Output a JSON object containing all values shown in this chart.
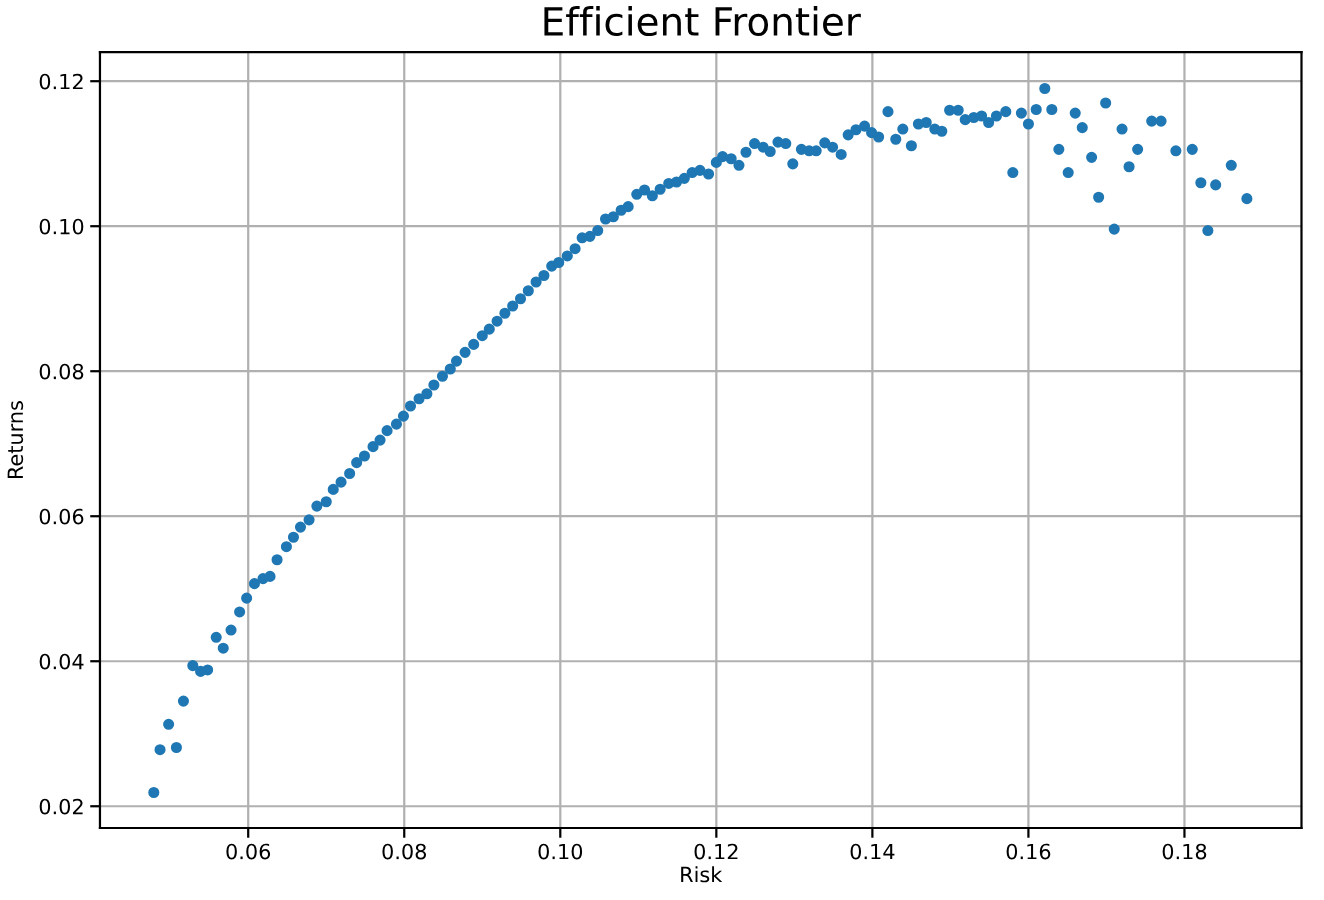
{
  "chart_data": {
    "type": "scatter",
    "title": "Efficient Frontier",
    "xlabel": "Risk",
    "ylabel": "Returns",
    "x": [
      0.0479,
      0.0487,
      0.0498,
      0.0508,
      0.0517,
      0.0529,
      0.0539,
      0.0548,
      0.0559,
      0.0568,
      0.0578,
      0.0589,
      0.0598,
      0.0608,
      0.0619,
      0.0628,
      0.0637,
      0.0649,
      0.0658,
      0.0667,
      0.0678,
      0.0688,
      0.07,
      0.0709,
      0.0719,
      0.073,
      0.0739,
      0.0749,
      0.076,
      0.0769,
      0.0778,
      0.079,
      0.0799,
      0.0808,
      0.0819,
      0.0829,
      0.0838,
      0.0849,
      0.0859,
      0.0867,
      0.0878,
      0.0889,
      0.09,
      0.0909,
      0.0919,
      0.0929,
      0.0939,
      0.0949,
      0.0959,
      0.0969,
      0.0979,
      0.0989,
      0.0998,
      0.1009,
      0.1019,
      0.1028,
      0.1038,
      0.1048,
      0.1058,
      0.1068,
      0.1078,
      0.1087,
      0.1098,
      0.1108,
      0.1118,
      0.1128,
      0.1139,
      0.1149,
      0.1159,
      0.1169,
      0.1179,
      0.119,
      0.12,
      0.1208,
      0.1219,
      0.1229,
      0.1238,
      0.1249,
      0.126,
      0.1269,
      0.1279,
      0.1289,
      0.1298,
      0.1309,
      0.1319,
      0.1328,
      0.1339,
      0.1349,
      0.136,
      0.1369,
      0.1379,
      0.139,
      0.1399,
      0.1408,
      0.142,
      0.143,
      0.1439,
      0.145,
      0.1459,
      0.1469,
      0.148,
      0.1489,
      0.1499,
      0.151,
      0.1519,
      0.153,
      0.154,
      0.1549,
      0.1559,
      0.1571,
      0.158,
      0.1591,
      0.16,
      0.161,
      0.1621,
      0.163,
      0.1639,
      0.1651,
      0.166,
      0.1669,
      0.1681,
      0.169,
      0.1699,
      0.171,
      0.172,
      0.1729,
      0.174,
      0.1758,
      0.177,
      0.1789,
      0.181,
      0.1821,
      0.183,
      0.184,
      0.186,
      0.188
    ],
    "series": [
      {
        "color": "#1f77b4",
        "values": [
          0.0219,
          0.0278,
          0.0313,
          0.0281,
          0.0345,
          0.0394,
          0.0386,
          0.0388,
          0.0433,
          0.0418,
          0.0443,
          0.0468,
          0.0487,
          0.0507,
          0.0514,
          0.0517,
          0.054,
          0.0558,
          0.0571,
          0.0585,
          0.0595,
          0.0614,
          0.062,
          0.0637,
          0.0647,
          0.0659,
          0.0674,
          0.0683,
          0.0696,
          0.0705,
          0.0718,
          0.0727,
          0.0738,
          0.0752,
          0.0762,
          0.0769,
          0.0781,
          0.0793,
          0.0803,
          0.0814,
          0.0826,
          0.0837,
          0.0849,
          0.0858,
          0.0869,
          0.088,
          0.089,
          0.09,
          0.0911,
          0.0923,
          0.0932,
          0.0945,
          0.095,
          0.0959,
          0.0969,
          0.0984,
          0.0986,
          0.0994,
          0.101,
          0.1013,
          0.1022,
          0.1027,
          0.1044,
          0.105,
          0.1042,
          0.1051,
          0.1059,
          0.1061,
          0.1066,
          0.1074,
          0.1077,
          0.1072,
          0.1088,
          0.1096,
          0.1093,
          0.1084,
          0.1102,
          0.1114,
          0.1109,
          0.1103,
          0.1116,
          0.1114,
          0.1086,
          0.1106,
          0.1104,
          0.1104,
          0.1115,
          0.1109,
          0.1099,
          0.1126,
          0.1133,
          0.1138,
          0.1129,
          0.1123,
          0.1158,
          0.112,
          0.1134,
          0.1111,
          0.1141,
          0.1143,
          0.1134,
          0.1131,
          0.116,
          0.116,
          0.1147,
          0.115,
          0.1152,
          0.1143,
          0.1152,
          0.1158,
          0.1074,
          0.1156,
          0.1141,
          0.1161,
          0.119,
          0.1161,
          0.1106,
          0.1074,
          0.1156,
          0.1136,
          0.1095,
          0.104,
          0.117,
          0.0996,
          0.1134,
          0.1082,
          0.1106,
          0.1145,
          0.1145,
          0.1104,
          0.1106,
          0.106,
          0.0994,
          0.1057,
          0.1084,
          0.1038
        ]
      }
    ],
    "xlim": [
      0.041,
      0.195
    ],
    "ylim": [
      0.017,
      0.124
    ],
    "xticks": [
      {
        "value": 0.06,
        "label": "0.06"
      },
      {
        "value": 0.08,
        "label": "0.08"
      },
      {
        "value": 0.1,
        "label": "0.10"
      },
      {
        "value": 0.12,
        "label": "0.12"
      },
      {
        "value": 0.14,
        "label": "0.14"
      },
      {
        "value": 0.16,
        "label": "0.16"
      },
      {
        "value": 0.18,
        "label": "0.18"
      }
    ],
    "yticks": [
      {
        "value": 0.02,
        "label": "0.02"
      },
      {
        "value": 0.04,
        "label": "0.04"
      },
      {
        "value": 0.06,
        "label": "0.06"
      },
      {
        "value": 0.08,
        "label": "0.08"
      },
      {
        "value": 0.1,
        "label": "0.10"
      },
      {
        "value": 0.12,
        "label": "0.12"
      }
    ],
    "grid": true,
    "marker": "circle"
  }
}
